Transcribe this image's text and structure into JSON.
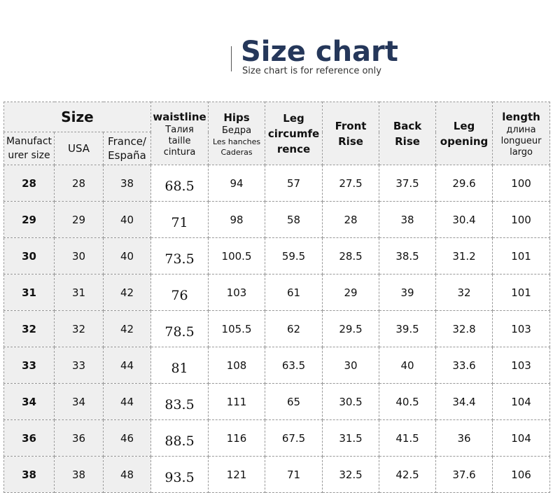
{
  "header": {
    "title": "Size chart",
    "subtitle": "Size chart is for reference only"
  },
  "columns": {
    "size": "Size",
    "manufacturer": "Manufact urer size",
    "usa": "USA",
    "france": "France/ España",
    "waist": {
      "main": "waistline",
      "l1": "Талия",
      "l2": "taille",
      "l3": "cintura"
    },
    "hips": {
      "main": "Hips",
      "l1": "Бедра",
      "l2": "Les hanches",
      "l3": "Caderas"
    },
    "leg_circ": "Leg circumfe rence",
    "front_rise": "Front Rise",
    "back_rise": "Back Rise",
    "leg_opening": "Leg opening",
    "length": {
      "main": "length",
      "l1": "длина",
      "l2": "longueur",
      "l3": "largo"
    }
  },
  "rows": [
    [
      "28",
      "28",
      "38",
      "68.5",
      "94",
      "57",
      "27.5",
      "37.5",
      "29.6",
      "100"
    ],
    [
      "29",
      "29",
      "40",
      "71",
      "98",
      "58",
      "28",
      "38",
      "30.4",
      "100"
    ],
    [
      "30",
      "30",
      "40",
      "73.5",
      "100.5",
      "59.5",
      "28.5",
      "38.5",
      "31.2",
      "101"
    ],
    [
      "31",
      "31",
      "42",
      "76",
      "103",
      "61",
      "29",
      "39",
      "32",
      "101"
    ],
    [
      "32",
      "32",
      "42",
      "78.5",
      "105.5",
      "62",
      "29.5",
      "39.5",
      "32.8",
      "103"
    ],
    [
      "33",
      "33",
      "44",
      "81",
      "108",
      "63.5",
      "30",
      "40",
      "33.6",
      "103"
    ],
    [
      "34",
      "34",
      "44",
      "83.5",
      "111",
      "65",
      "30.5",
      "40.5",
      "34.4",
      "104"
    ],
    [
      "36",
      "36",
      "46",
      "88.5",
      "116",
      "67.5",
      "31.5",
      "41.5",
      "36",
      "104"
    ],
    [
      "38",
      "38",
      "48",
      "93.5",
      "121",
      "71",
      "32.5",
      "42.5",
      "37.6",
      "106"
    ]
  ],
  "colors": {
    "title": "#25375a",
    "header_bg": "#f0f0f0"
  }
}
